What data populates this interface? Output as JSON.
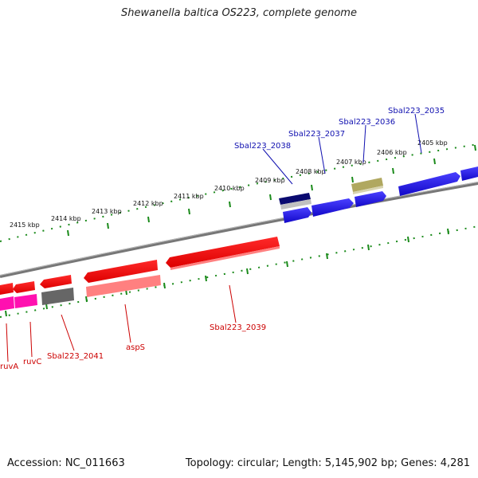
{
  "title": "Shewanella baltica OS223, complete genome",
  "accession": "Accession: NC_011663",
  "topology": "Topology: circular; Length: 5,145,902 bp; Genes: 4,281",
  "ticks": [
    "2405 kbp",
    "2406 kbp",
    "2407 kbp",
    "2408 kbp",
    "2409 kbp",
    "2410 kbp",
    "2411 kbp",
    "2412 kbp",
    "2413 kbp",
    "2414 kbp",
    "2415 kbp"
  ],
  "labels": {
    "sbal2035": "Sbal223_2035",
    "sbal2036": "Sbal223_2036",
    "sbal2037": "Sbal223_2037",
    "sbal2038": "Sbal223_2038",
    "sbal2039": "Sbal223_2039",
    "sbal2041": "Sbal223_2041",
    "asps": "aspS",
    "ruvc": "ruvC",
    "ruva": "ruvA"
  },
  "colors": {
    "blue_gene": "#1a10e0",
    "red_gene": "#ff0000",
    "pink_gene": "#ff8080",
    "magenta_gene": "#ff10b0",
    "grey_gene": "#666666",
    "olive_gene": "#b0a860",
    "navy_gene": "#0a0a70",
    "silver_gene": "#c0c0c0",
    "backbone": "#888888",
    "tick_green": "#1a8a1a",
    "blue_label": "#1010b0",
    "red_label": "#cc0000"
  }
}
